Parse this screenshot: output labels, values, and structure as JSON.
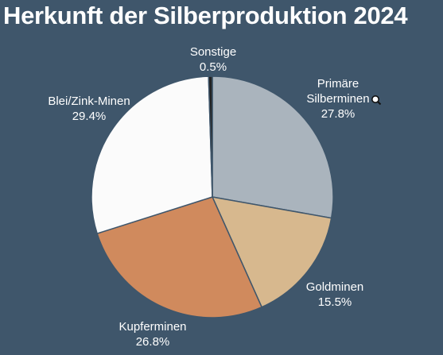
{
  "title": "Herkunft der Silberproduktion 2024",
  "colors": {
    "background": "#3f566b",
    "text": "#ffffff",
    "slice_stroke": "#3f566b"
  },
  "chart_data": {
    "type": "pie",
    "title": "Herkunft der Silberproduktion 2024",
    "unit": "%",
    "start_angle_deg": 0,
    "direction": "clockwise",
    "slices": [
      {
        "label": "Primäre Silberminen",
        "label_lines": [
          "Primäre",
          "Silberminen"
        ],
        "value": 27.8,
        "value_text": "27.8%",
        "color": "#aab4bd"
      },
      {
        "label": "Goldminen",
        "label_lines": [
          "Goldminen"
        ],
        "value": 15.5,
        "value_text": "15.5%",
        "color": "#d7b88e"
      },
      {
        "label": "Kupferminen",
        "label_lines": [
          "Kupferminen"
        ],
        "value": 26.8,
        "value_text": "26.8%",
        "color": "#d08a5d"
      },
      {
        "label": "Blei/Zink-Minen",
        "label_lines": [
          "Blei/Zink-Minen"
        ],
        "value": 29.4,
        "value_text": "29.4%",
        "color": "#fbfbfb"
      },
      {
        "label": "Sonstige",
        "label_lines": [
          "Sonstige"
        ],
        "value": 0.5,
        "value_text": "0.5%",
        "color": "#222222"
      }
    ]
  }
}
